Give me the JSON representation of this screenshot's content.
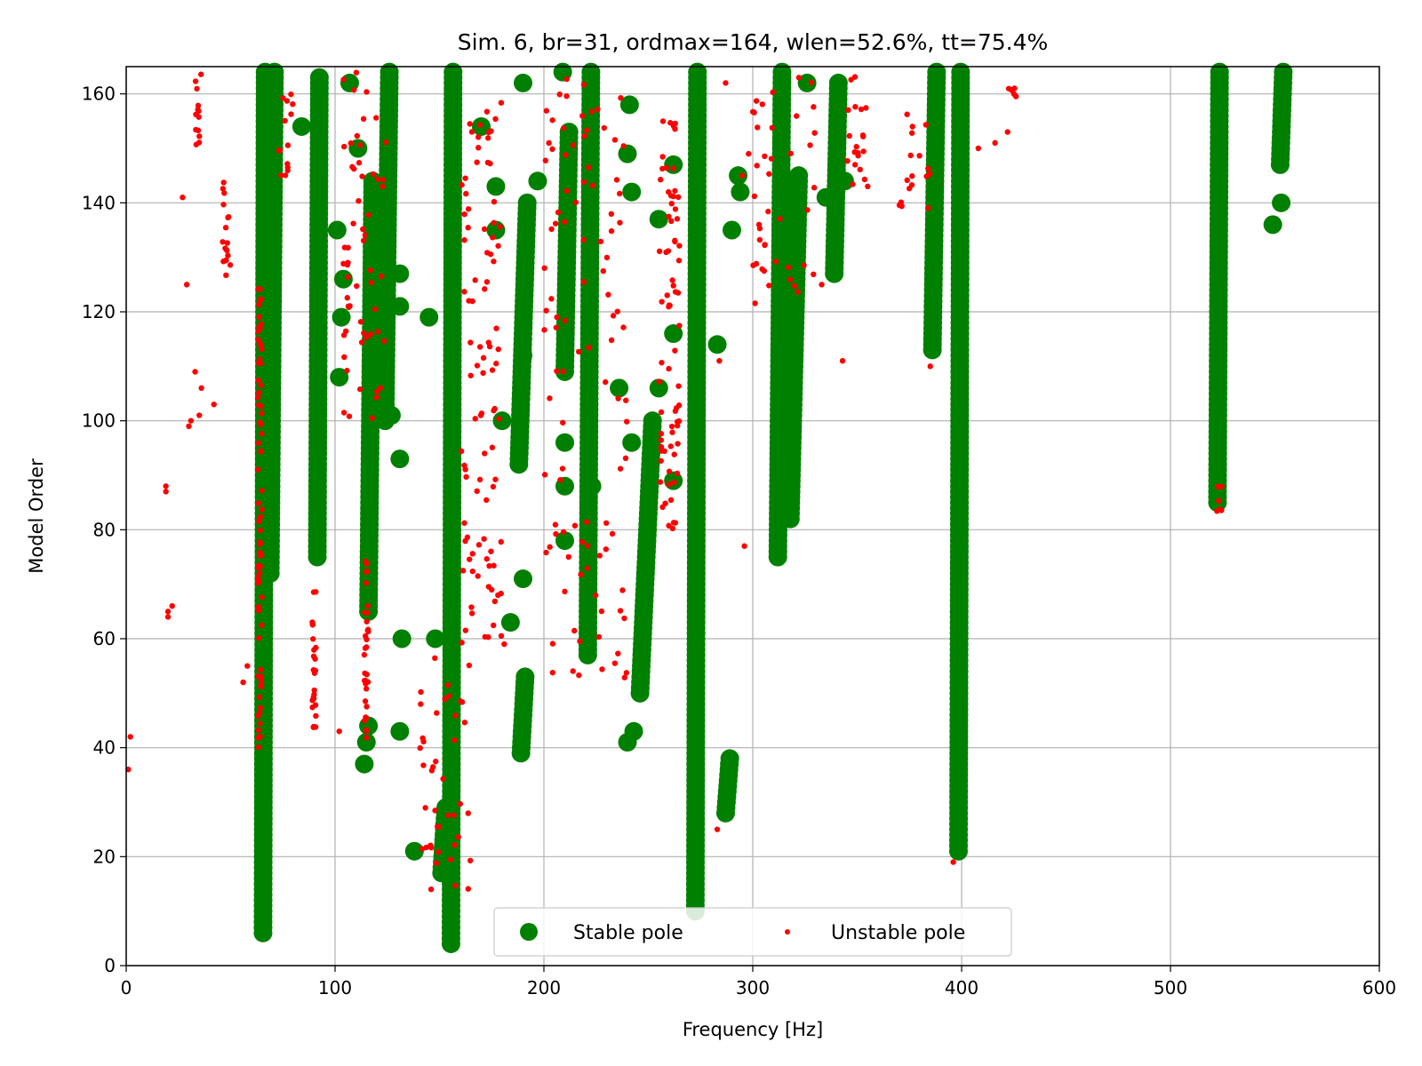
{
  "chart_data": {
    "type": "scatter",
    "title": "Sim. 6, br=31, ordmax=164, wlen=52.6%, tt=75.4%",
    "xlabel": "Frequency [Hz]",
    "ylabel": "Model Order",
    "xlim": [
      0,
      600
    ],
    "ylim": [
      0,
      165
    ],
    "xticks": [
      "0",
      "100",
      "200",
      "300",
      "400",
      "500",
      "600"
    ],
    "yticks": [
      "0",
      "20",
      "40",
      "60",
      "80",
      "100",
      "120",
      "140",
      "160"
    ],
    "grid": true,
    "legend_position": "bottom-center",
    "colors": {
      "stable": "#008000",
      "unstable": "#ff0000"
    },
    "series": [
      {
        "name": "Stable pole",
        "marker": "large-circle",
        "runs": [
          {
            "x": [
              65.5,
              66.5
            ],
            "y": [
              6,
              164
            ]
          },
          {
            "x": [
              69,
              71
            ],
            "y": [
              72,
              164
            ]
          },
          {
            "x": [
              91.5,
              92.5
            ],
            "y": [
              75,
              163
            ]
          },
          {
            "x": [
              116,
              118
            ],
            "y": [
              65,
              144
            ]
          },
          {
            "x": [
              124,
              126
            ],
            "y": [
              100,
              164
            ]
          },
          {
            "x": [
              155.5,
              156.5
            ],
            "y": [
              4,
              164
            ]
          },
          {
            "x": [
              151,
              153
            ],
            "y": [
              17,
              29
            ]
          },
          {
            "x": [
              189,
              191
            ],
            "y": [
              39,
              53
            ]
          },
          {
            "x": [
              188,
              192
            ],
            "y": [
              92,
              140
            ]
          },
          {
            "x": [
              210,
              212
            ],
            "y": [
              109,
              153
            ]
          },
          {
            "x": [
              221,
              222.5
            ],
            "y": [
              57,
              164
            ]
          },
          {
            "x": [
              246,
              252
            ],
            "y": [
              50,
              100
            ]
          },
          {
            "x": [
              272.5,
              273.5
            ],
            "y": [
              10,
              164
            ]
          },
          {
            "x": [
              287,
              289
            ],
            "y": [
              28,
              38
            ]
          },
          {
            "x": [
              312,
              314
            ],
            "y": [
              75,
              164
            ]
          },
          {
            "x": [
              318,
              322
            ],
            "y": [
              82,
              145
            ]
          },
          {
            "x": [
              339,
              341
            ],
            "y": [
              127,
              162
            ]
          },
          {
            "x": [
              386,
              388
            ],
            "y": [
              113,
              164
            ]
          },
          {
            "x": [
              398.5,
              399.5
            ],
            "y": [
              21,
              164
            ]
          },
          {
            "x": [
              522.5,
              523.5
            ],
            "y": [
              85,
              164
            ]
          },
          {
            "x": [
              552.5,
              554
            ],
            "y": [
              147,
              164
            ]
          }
        ],
        "points": [
          {
            "x": 84,
            "y": 154
          },
          {
            "x": 107,
            "y": 162
          },
          {
            "x": 111,
            "y": 150
          },
          {
            "x": 101,
            "y": 135
          },
          {
            "x": 104,
            "y": 126
          },
          {
            "x": 103,
            "y": 119
          },
          {
            "x": 102,
            "y": 108
          },
          {
            "x": 131,
            "y": 127
          },
          {
            "x": 131,
            "y": 121
          },
          {
            "x": 131,
            "y": 93
          },
          {
            "x": 131,
            "y": 43
          },
          {
            "x": 138,
            "y": 21
          },
          {
            "x": 145,
            "y": 119
          },
          {
            "x": 148,
            "y": 60
          },
          {
            "x": 132,
            "y": 60
          },
          {
            "x": 114,
            "y": 37
          },
          {
            "x": 115,
            "y": 41
          },
          {
            "x": 116,
            "y": 44
          },
          {
            "x": 127,
            "y": 101
          },
          {
            "x": 170,
            "y": 154
          },
          {
            "x": 177,
            "y": 143
          },
          {
            "x": 177,
            "y": 135
          },
          {
            "x": 180,
            "y": 100
          },
          {
            "x": 184,
            "y": 63
          },
          {
            "x": 190,
            "y": 112
          },
          {
            "x": 190,
            "y": 71
          },
          {
            "x": 190,
            "y": 162
          },
          {
            "x": 197,
            "y": 144
          },
          {
            "x": 209,
            "y": 164
          },
          {
            "x": 210,
            "y": 96
          },
          {
            "x": 210,
            "y": 88
          },
          {
            "x": 210,
            "y": 78
          },
          {
            "x": 236,
            "y": 106
          },
          {
            "x": 240,
            "y": 41
          },
          {
            "x": 243,
            "y": 43
          },
          {
            "x": 242,
            "y": 96
          },
          {
            "x": 242,
            "y": 142
          },
          {
            "x": 241,
            "y": 158
          },
          {
            "x": 240,
            "y": 149
          },
          {
            "x": 255,
            "y": 137
          },
          {
            "x": 255,
            "y": 106
          },
          {
            "x": 262,
            "y": 116
          },
          {
            "x": 262,
            "y": 89
          },
          {
            "x": 262,
            "y": 147
          },
          {
            "x": 283,
            "y": 114
          },
          {
            "x": 293,
            "y": 145
          },
          {
            "x": 294,
            "y": 142
          },
          {
            "x": 290,
            "y": 135
          },
          {
            "x": 326,
            "y": 162
          },
          {
            "x": 344,
            "y": 144
          },
          {
            "x": 335,
            "y": 141
          },
          {
            "x": 549,
            "y": 136
          },
          {
            "x": 553,
            "y": 140
          },
          {
            "x": 223,
            "y": 88
          }
        ]
      },
      {
        "name": "Unstable pole",
        "marker": "small-dot",
        "runs": [
          {
            "x": [
              33,
              36
            ],
            "y": [
              150,
              164
            ]
          },
          {
            "x": [
              46,
              50
            ],
            "y": [
              125,
              144
            ]
          },
          {
            "x": [
              63,
              65
            ],
            "y": [
              40,
              125
            ]
          },
          {
            "x": [
              89,
              91
            ],
            "y": [
              43,
              70
            ]
          },
          {
            "x": [
              114,
              116
            ],
            "y": [
              40,
              75
            ]
          },
          {
            "x": [
              73,
              80
            ],
            "y": [
              145,
              160
            ]
          },
          {
            "x": [
              104,
              125
            ],
            "y": [
              100,
              164
            ]
          },
          {
            "x": [
              140,
              165
            ],
            "y": [
              14,
              60
            ]
          },
          {
            "x": [
              160,
              180
            ],
            "y": [
              60,
              160
            ]
          },
          {
            "x": [
              200,
              240
            ],
            "y": [
              52,
              164
            ]
          },
          {
            "x": [
              255,
              265
            ],
            "y": [
              80,
              160
            ]
          },
          {
            "x": [
              300,
              330
            ],
            "y": [
              120,
              164
            ]
          },
          {
            "x": [
              345,
              356
            ],
            "y": [
              143,
              164
            ]
          },
          {
            "x": [
              370,
              385
            ],
            "y": [
              139,
              158
            ]
          },
          {
            "x": [
              422,
              427
            ],
            "y": [
              159,
              163
            ]
          },
          {
            "x": [
              522,
              525
            ],
            "y": [
              81,
              88
            ]
          }
        ],
        "points": [
          {
            "x": 1,
            "y": 36
          },
          {
            "x": 2,
            "y": 42
          },
          {
            "x": 19,
            "y": 87
          },
          {
            "x": 19,
            "y": 88
          },
          {
            "x": 20,
            "y": 64
          },
          {
            "x": 20,
            "y": 65
          },
          {
            "x": 22,
            "y": 66
          },
          {
            "x": 27,
            "y": 141
          },
          {
            "x": 29,
            "y": 125
          },
          {
            "x": 30,
            "y": 99
          },
          {
            "x": 31,
            "y": 100
          },
          {
            "x": 33,
            "y": 109
          },
          {
            "x": 35,
            "y": 101
          },
          {
            "x": 36,
            "y": 106
          },
          {
            "x": 42,
            "y": 103
          },
          {
            "x": 56,
            "y": 52
          },
          {
            "x": 58,
            "y": 55
          },
          {
            "x": 102,
            "y": 43
          },
          {
            "x": 141,
            "y": 48
          },
          {
            "x": 146,
            "y": 14
          },
          {
            "x": 175,
            "y": 69
          },
          {
            "x": 178,
            "y": 68
          },
          {
            "x": 181,
            "y": 59
          },
          {
            "x": 295,
            "y": 145
          },
          {
            "x": 296,
            "y": 77
          },
          {
            "x": 298,
            "y": 149
          },
          {
            "x": 303,
            "y": 136
          },
          {
            "x": 333,
            "y": 125
          },
          {
            "x": 343,
            "y": 111
          },
          {
            "x": 349,
            "y": 147
          },
          {
            "x": 385,
            "y": 110
          },
          {
            "x": 408,
            "y": 150
          },
          {
            "x": 416,
            "y": 151
          },
          {
            "x": 422,
            "y": 153
          },
          {
            "x": 396,
            "y": 19
          },
          {
            "x": 283,
            "y": 25
          },
          {
            "x": 287,
            "y": 162
          },
          {
            "x": 284,
            "y": 111
          }
        ]
      }
    ]
  }
}
